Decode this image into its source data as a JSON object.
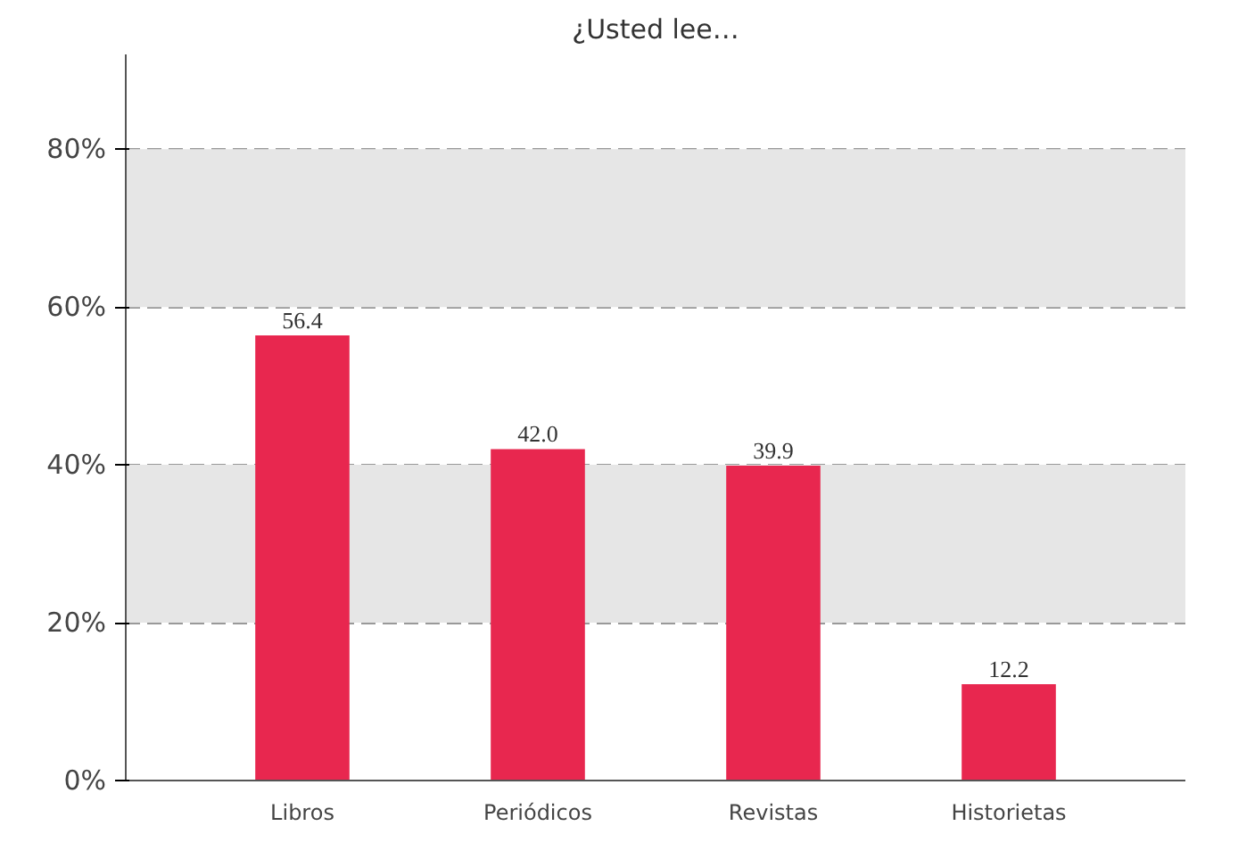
{
  "chart_data": {
    "type": "bar",
    "title": "¿Usted lee…",
    "categories": [
      "Libros",
      "Periódicos",
      "Revistas",
      "Historietas"
    ],
    "values": [
      56.4,
      42.0,
      39.9,
      12.2
    ],
    "value_labels": [
      "56.4",
      "42.0",
      "39.9",
      "12.2"
    ],
    "color": "#e8274f",
    "ylim": [
      0,
      92
    ],
    "yticks": [
      {
        "value": 0,
        "label": "0%"
      },
      {
        "value": 20,
        "label": "20%"
      },
      {
        "value": 40,
        "label": "40%"
      },
      {
        "value": 60,
        "label": "60%"
      },
      {
        "value": 80,
        "label": "80%"
      }
    ],
    "grid": "y",
    "bands": [
      {
        "axis": "y",
        "from": 20,
        "to": 40,
        "color": "#e6e6e6"
      },
      {
        "axis": "y",
        "from": 60,
        "to": 80,
        "color": "#e6e6e6"
      }
    ]
  }
}
